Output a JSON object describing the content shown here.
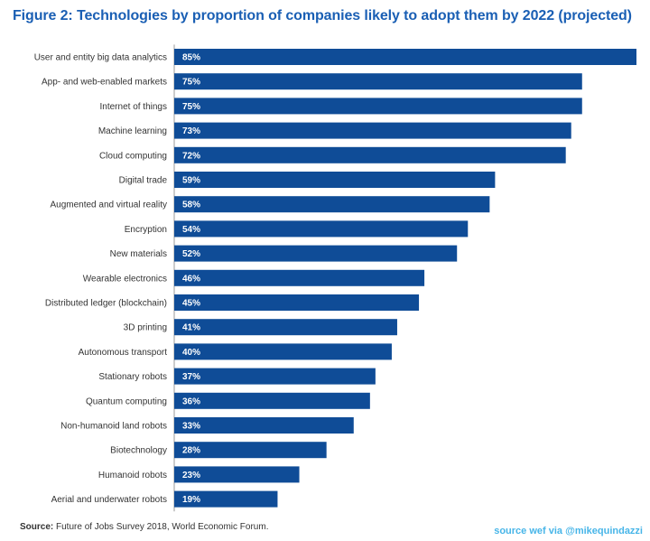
{
  "chart_data": {
    "type": "bar",
    "orientation": "horizontal",
    "title": "Figure 2: Technologies by proportion of companies likely to adopt them by 2022 (projected)",
    "xlabel": "",
    "ylabel": "",
    "xlim": [
      0,
      85
    ],
    "grid": false,
    "bar_color": "#0f4c97",
    "value_format": "percent",
    "categories": [
      "User and entity big data analytics",
      "App- and web-enabled markets",
      "Internet of things",
      "Machine learning",
      "Cloud computing",
      "Digital trade",
      "Augmented and virtual reality",
      "Encryption",
      "New materials",
      "Wearable electronics",
      "Distributed ledger (blockchain)",
      "3D printing",
      "Autonomous transport",
      "Stationary robots",
      "Quantum computing",
      "Non-humanoid land robots",
      "Biotechnology",
      "Humanoid robots",
      "Aerial and underwater robots"
    ],
    "values": [
      85,
      75,
      75,
      73,
      72,
      59,
      58,
      54,
      52,
      46,
      45,
      41,
      40,
      37,
      36,
      33,
      28,
      23,
      19
    ],
    "value_labels": [
      "85%",
      "75%",
      "75%",
      "73%",
      "72%",
      "59%",
      "58%",
      "54%",
      "52%",
      "46%",
      "45%",
      "41%",
      "40%",
      "37%",
      "36%",
      "33%",
      "28%",
      "23%",
      "19%"
    ]
  },
  "footer": {
    "source_key": "Source:",
    "source_text": " Future of Jobs Survey 2018, World Economic Forum.",
    "credit": "source wef via @mikequindazzi"
  },
  "colors": {
    "title": "#1a5fb4",
    "bar": "#0f4c97",
    "credit": "#47b5e8"
  }
}
